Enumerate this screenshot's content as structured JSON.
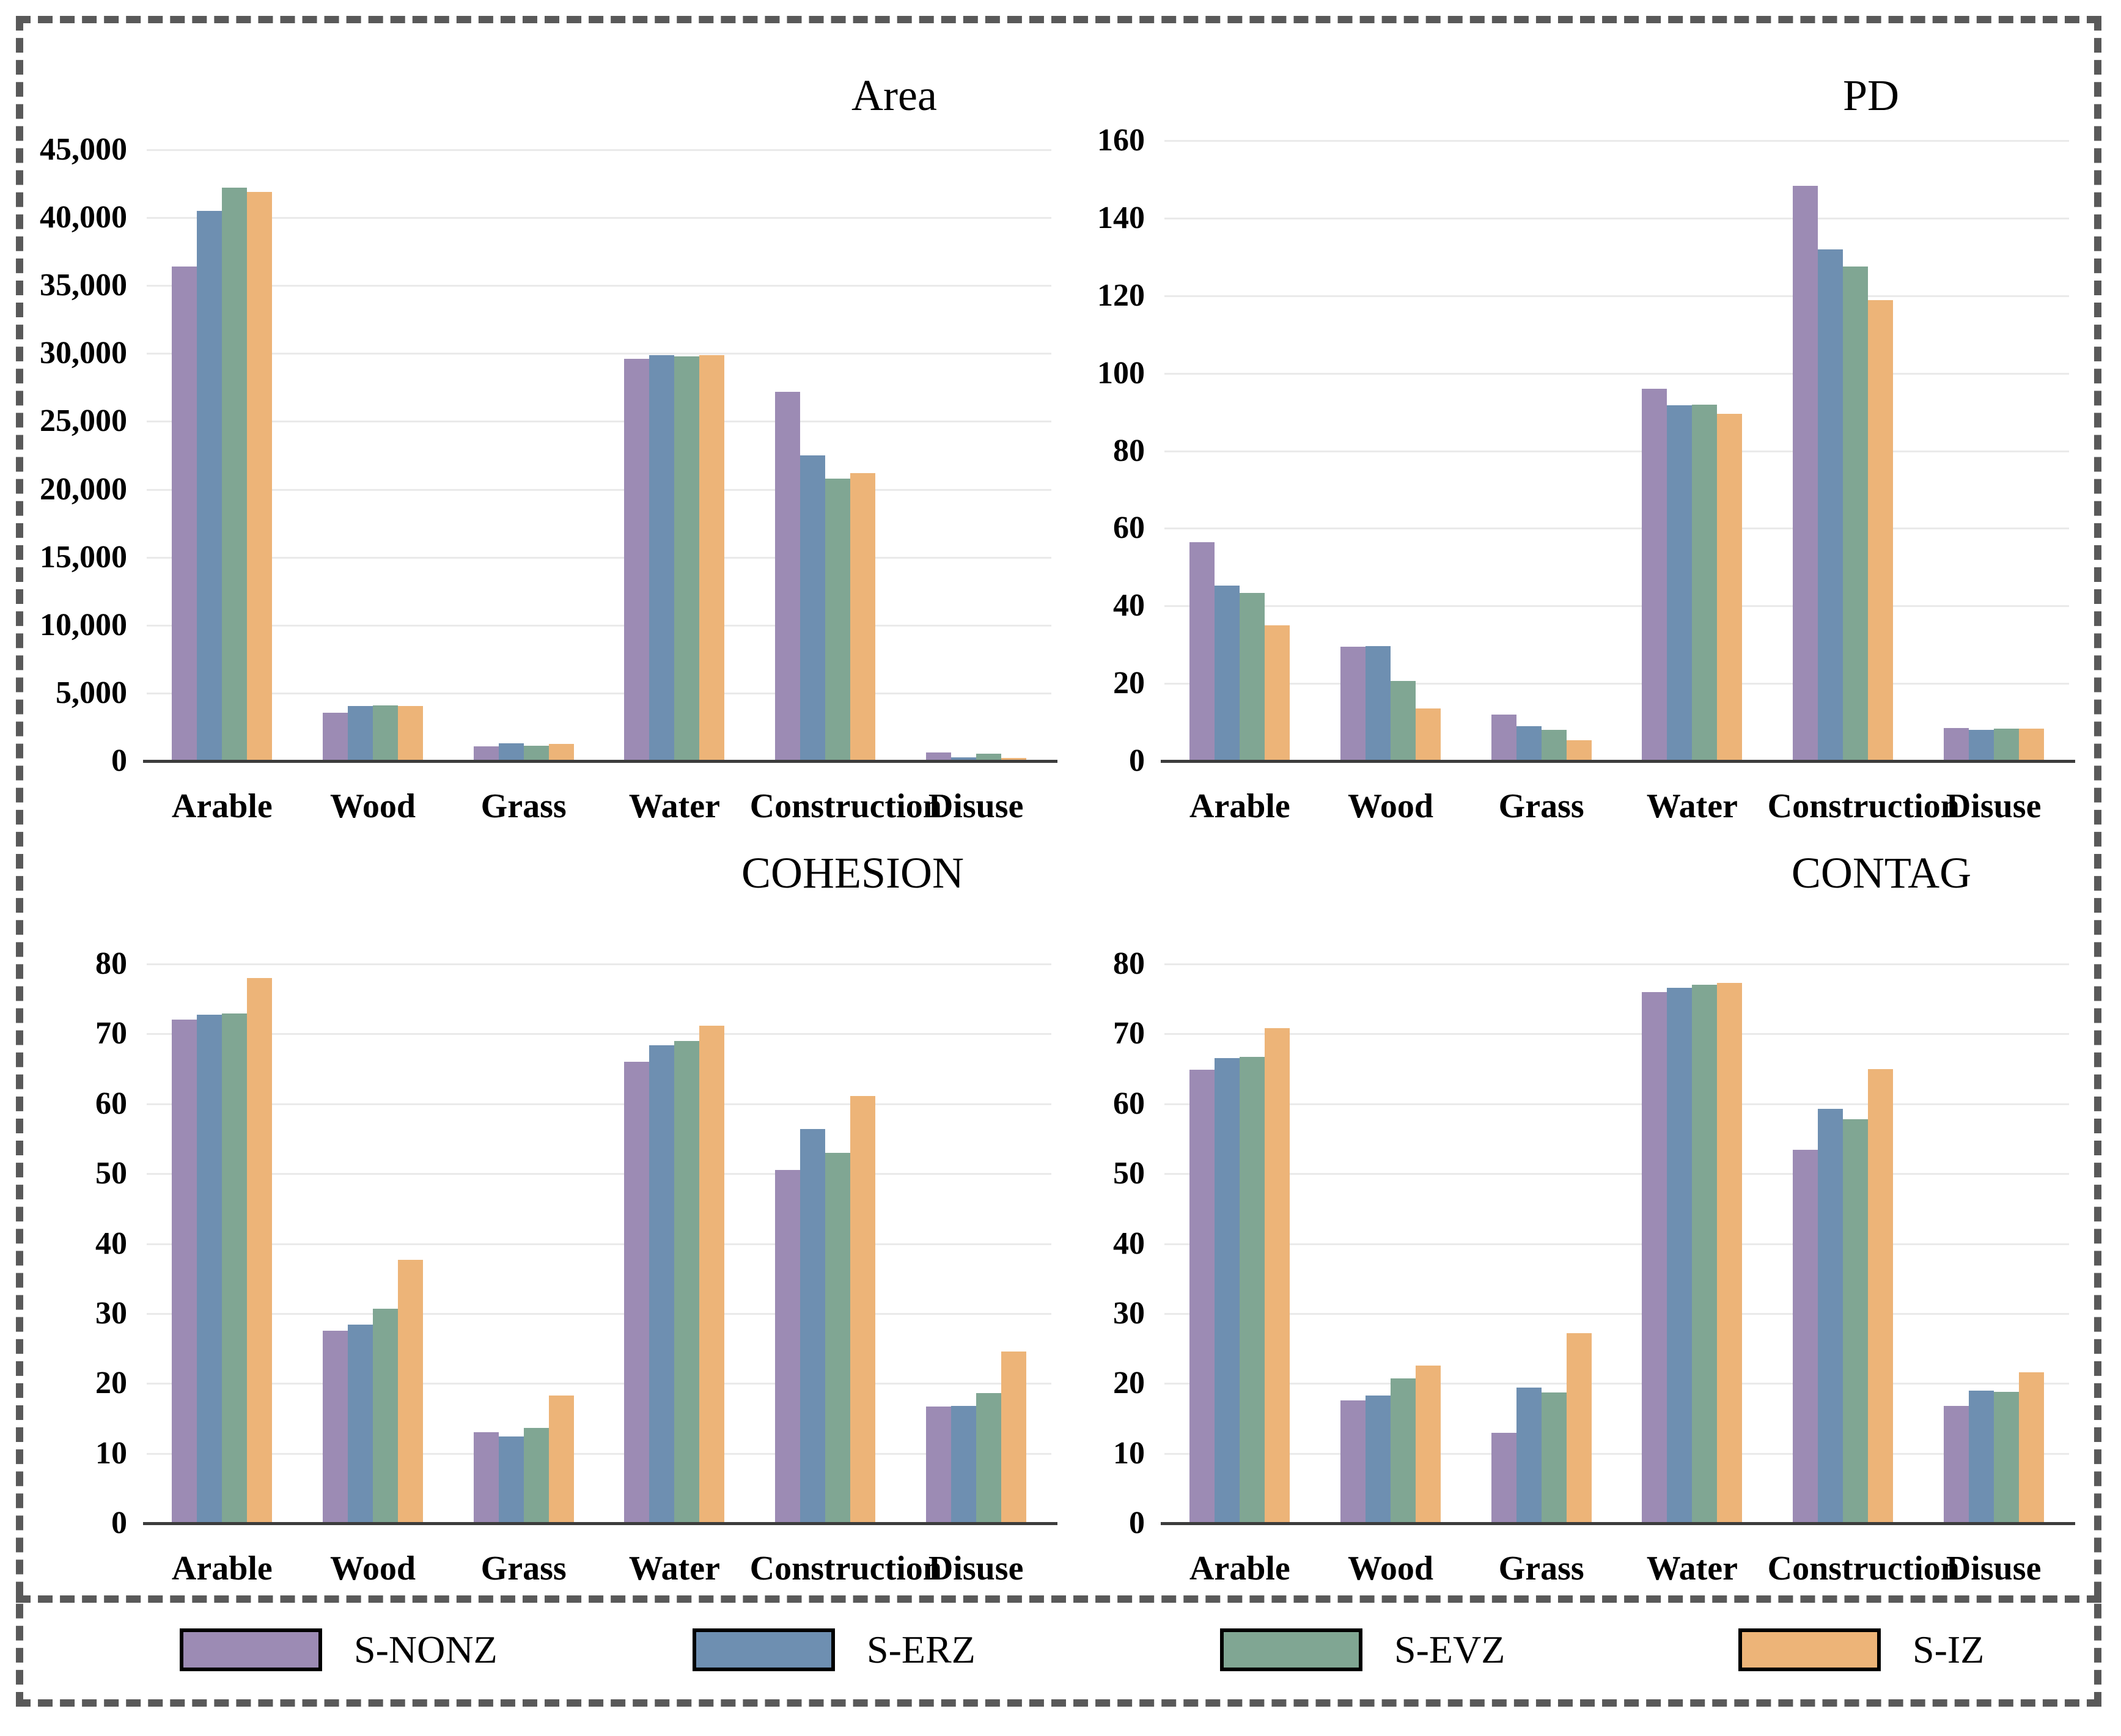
{
  "colors": {
    "series": [
      "#9c8bb4",
      "#6e8fb1",
      "#80a693",
      "#edb478"
    ],
    "gridline": "#eaeaea",
    "axis": "#3c3c3c",
    "frame_dash": "#595959",
    "text": "#000000"
  },
  "legend": {
    "entries": [
      {
        "label": "S-NONZ",
        "color": "#9c8bb4"
      },
      {
        "label": "S-ERZ",
        "color": "#6e8fb1"
      },
      {
        "label": "S-EVZ",
        "color": "#80a693"
      },
      {
        "label": "S-IZ",
        "color": "#edb478"
      }
    ],
    "position": "bottom-shared"
  },
  "chart_data": [
    {
      "type": "bar",
      "title": "Area",
      "categories": [
        "Arable",
        "Wood",
        "Grass",
        "Water",
        "Construction",
        "Disuse"
      ],
      "series": [
        {
          "name": "S-NONZ",
          "values": [
            36400,
            3560,
            1060,
            29600,
            27200,
            650
          ]
        },
        {
          "name": "S-ERZ",
          "values": [
            40500,
            4030,
            1290,
            29880,
            22500,
            280
          ]
        },
        {
          "name": "S-EVZ",
          "values": [
            42200,
            4090,
            1140,
            29800,
            20800,
            560
          ]
        },
        {
          "name": "S-IZ",
          "values": [
            41900,
            4050,
            1240,
            29870,
            21200,
            230
          ]
        }
      ],
      "ylim": [
        0,
        45000
      ],
      "ytick_step": 5000,
      "ytick_labels": [
        "0",
        "5,000",
        "10,000",
        "15,000",
        "20,000",
        "25,000",
        "30,000",
        "35,000",
        "40,000",
        "45,000"
      ],
      "grid": true,
      "xlabel": "",
      "ylabel": ""
    },
    {
      "type": "bar",
      "title": "PD",
      "categories": [
        "Arable",
        "Wood",
        "Grass",
        "Water",
        "Construction",
        "Disuse"
      ],
      "series": [
        {
          "name": "S-NONZ",
          "values": [
            56.5,
            29.4,
            12.0,
            96.0,
            148.3,
            8.5
          ]
        },
        {
          "name": "S-ERZ",
          "values": [
            45.3,
            29.6,
            9.0,
            91.8,
            132.0,
            8.1
          ]
        },
        {
          "name": "S-EVZ",
          "values": [
            43.3,
            20.6,
            8.0,
            91.9,
            127.5,
            8.4
          ]
        },
        {
          "name": "S-IZ",
          "values": [
            35.0,
            13.6,
            5.4,
            89.6,
            118.8,
            8.3
          ]
        }
      ],
      "ylim": [
        0,
        160
      ],
      "ytick_step": 20,
      "ytick_labels": [
        "0",
        "20",
        "40",
        "60",
        "80",
        "100",
        "120",
        "140",
        "160"
      ],
      "grid": true,
      "xlabel": "",
      "ylabel": ""
    },
    {
      "type": "bar",
      "title": "COHESION",
      "categories": [
        "Arable",
        "Wood",
        "Grass",
        "Water",
        "Construction",
        "Disuse"
      ],
      "series": [
        {
          "name": "S-NONZ",
          "values": [
            72.0,
            27.5,
            13.0,
            66.0,
            50.5,
            16.7
          ]
        },
        {
          "name": "S-ERZ",
          "values": [
            72.7,
            28.4,
            12.4,
            68.4,
            56.4,
            16.8
          ]
        },
        {
          "name": "S-EVZ",
          "values": [
            72.9,
            30.7,
            13.6,
            69.0,
            53.0,
            18.6
          ]
        },
        {
          "name": "S-IZ",
          "values": [
            78.0,
            37.7,
            18.3,
            71.2,
            61.1,
            24.6
          ]
        }
      ],
      "ylim": [
        0,
        80
      ],
      "ytick_step": 10,
      "ytick_labels": [
        "0",
        "10",
        "20",
        "30",
        "40",
        "50",
        "60",
        "70",
        "80"
      ],
      "grid": true,
      "xlabel": "",
      "ylabel": ""
    },
    {
      "type": "bar",
      "title": "CONTAG",
      "categories": [
        "Arable",
        "Wood",
        "Grass",
        "Water",
        "Construction",
        "Disuse"
      ],
      "series": [
        {
          "name": "S-NONZ",
          "values": [
            64.9,
            17.6,
            12.9,
            76.0,
            53.4,
            16.8
          ]
        },
        {
          "name": "S-ERZ",
          "values": [
            66.5,
            18.3,
            19.4,
            76.6,
            59.3,
            19.0
          ]
        },
        {
          "name": "S-EVZ",
          "values": [
            66.7,
            20.7,
            18.7,
            77.0,
            57.8,
            18.8
          ]
        },
        {
          "name": "S-IZ",
          "values": [
            70.8,
            22.6,
            27.2,
            77.3,
            65.0,
            21.6
          ]
        }
      ],
      "ylim": [
        0,
        80
      ],
      "ytick_step": 10,
      "ytick_labels": [
        "0",
        "10",
        "20",
        "30",
        "40",
        "50",
        "60",
        "70",
        "80"
      ],
      "grid": true,
      "xlabel": "",
      "ylabel": ""
    }
  ]
}
